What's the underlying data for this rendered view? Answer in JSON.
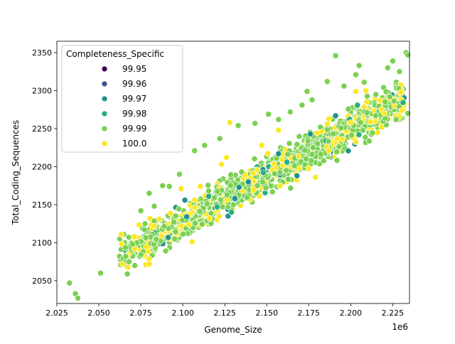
{
  "chart_data": {
    "type": "scatter",
    "title": "",
    "xlabel": "Genome_Size",
    "ylabel": "Total_Coding_Sequences",
    "x_offset_label": "1e6",
    "xlim": [
      2.025,
      2.235
    ],
    "ylim": [
      2020,
      2365
    ],
    "x_ticks": [
      2.025,
      2.05,
      2.075,
      2.1,
      2.125,
      2.15,
      2.175,
      2.2,
      2.225
    ],
    "x_tick_labels": [
      "2.025",
      "2.050",
      "2.075",
      "2.100",
      "2.125",
      "2.150",
      "2.175",
      "2.200",
      "2.225"
    ],
    "y_ticks": [
      2050,
      2100,
      2150,
      2200,
      2250,
      2300,
      2350
    ],
    "y_tick_labels": [
      "2050",
      "2100",
      "2150",
      "2200",
      "2250",
      "2300",
      "2350"
    ],
    "grid": false,
    "legend": {
      "title": "Completeness_Specific",
      "placement": "upper-left",
      "entries": [
        {
          "label": "99.95",
          "color": "#440154"
        },
        {
          "label": "99.96",
          "color": "#3b528b"
        },
        {
          "label": "99.97",
          "color": "#21918c"
        },
        {
          "label": "99.98",
          "color": "#27ad81"
        },
        {
          "label": "99.99",
          "color": "#7ad151"
        },
        {
          "label": "100.0",
          "color": "#fde725"
        }
      ]
    },
    "point_edge_color": "#ffffff",
    "trend": {
      "x_start": 2.062,
      "x_end": 2.232,
      "y_start": 2080,
      "y_end": 2290,
      "spread_y": 22,
      "count": 1400,
      "color_mix": {
        "99.99": 0.74,
        "100.0": 0.22,
        "99.97": 0.025,
        "99.98": 0.015
      }
    },
    "series": [
      {
        "name": "99.99",
        "points": [
          [
            2.0325,
            2047
          ],
          [
            2.036,
            2033
          ],
          [
            2.0375,
            2027
          ],
          [
            2.051,
            2060
          ],
          [
            2.191,
            2346
          ],
          [
            2.233,
            2350
          ],
          [
            2.234,
            2347
          ],
          [
            2.222,
            2330
          ],
          [
            2.205,
            2333
          ],
          [
            2.177,
            2288
          ],
          [
            2.151,
            2269
          ],
          [
            2.133,
            2254
          ],
          [
            2.113,
            2228
          ],
          [
            2.063,
            2071
          ],
          [
            2.066,
            2082
          ],
          [
            2.083,
            2148
          ],
          [
            2.218,
            2268
          ],
          [
            2.227,
            2262
          ],
          [
            2.234,
            2270
          ],
          [
            2.215,
            2295
          ],
          [
            2.225,
            2339
          ],
          [
            2.229,
            2325
          ],
          [
            2.208,
            2311
          ],
          [
            2.174,
            2299
          ],
          [
            2.196,
            2306
          ],
          [
            2.186,
            2312
          ],
          [
            2.203,
            2321
          ],
          [
            2.164,
            2272
          ],
          [
            2.171,
            2281
          ],
          [
            2.157,
            2262
          ],
          [
            2.143,
            2257
          ],
          [
            2.122,
            2237
          ],
          [
            2.107,
            2221
          ],
          [
            2.098,
            2190
          ],
          [
            2.092,
            2174
          ],
          [
            2.088,
            2175
          ],
          [
            2.08,
            2165
          ],
          [
            2.075,
            2142
          ],
          [
            2.07,
            2098
          ],
          [
            2.068,
            2075
          ]
        ]
      },
      {
        "name": "100.0",
        "points": [
          [
            2.064,
            2072
          ],
          [
            2.078,
            2071
          ],
          [
            2.08,
            2072
          ],
          [
            2.128,
            2258
          ],
          [
            2.157,
            2248
          ],
          [
            2.183,
            2246
          ],
          [
            2.187,
            2263
          ],
          [
            2.2,
            2258
          ],
          [
            2.203,
            2299
          ],
          [
            2.209,
            2300
          ],
          [
            2.23,
            2298
          ],
          [
            2.22,
            2270
          ],
          [
            2.179,
            2186
          ],
          [
            2.169,
            2214
          ],
          [
            2.123,
            2203
          ],
          [
            2.107,
            2156
          ],
          [
            2.099,
            2122
          ],
          [
            2.086,
            2131
          ],
          [
            2.071,
            2108
          ],
          [
            2.083,
            2122
          ],
          [
            2.099,
            2171
          ],
          [
            2.116,
            2132
          ],
          [
            2.126,
            2212
          ],
          [
            2.147,
            2228
          ],
          [
            2.158,
            2175
          ],
          [
            2.175,
            2198
          ],
          [
            2.187,
            2221
          ],
          [
            2.195,
            2236
          ]
        ]
      },
      {
        "name": "99.97",
        "points": [
          [
            2.127,
            2135
          ],
          [
            2.131,
            2158
          ],
          [
            2.157,
            2217
          ],
          [
            2.168,
            2188
          ],
          [
            2.176,
            2243
          ],
          [
            2.139,
            2180
          ],
          [
            2.191,
            2267
          ]
        ]
      },
      {
        "name": "99.98",
        "points": [
          [
            2.129,
            2140
          ],
          [
            2.162,
            2206
          ],
          [
            2.204,
            2281
          ],
          [
            2.148,
            2192
          ]
        ]
      }
    ]
  }
}
